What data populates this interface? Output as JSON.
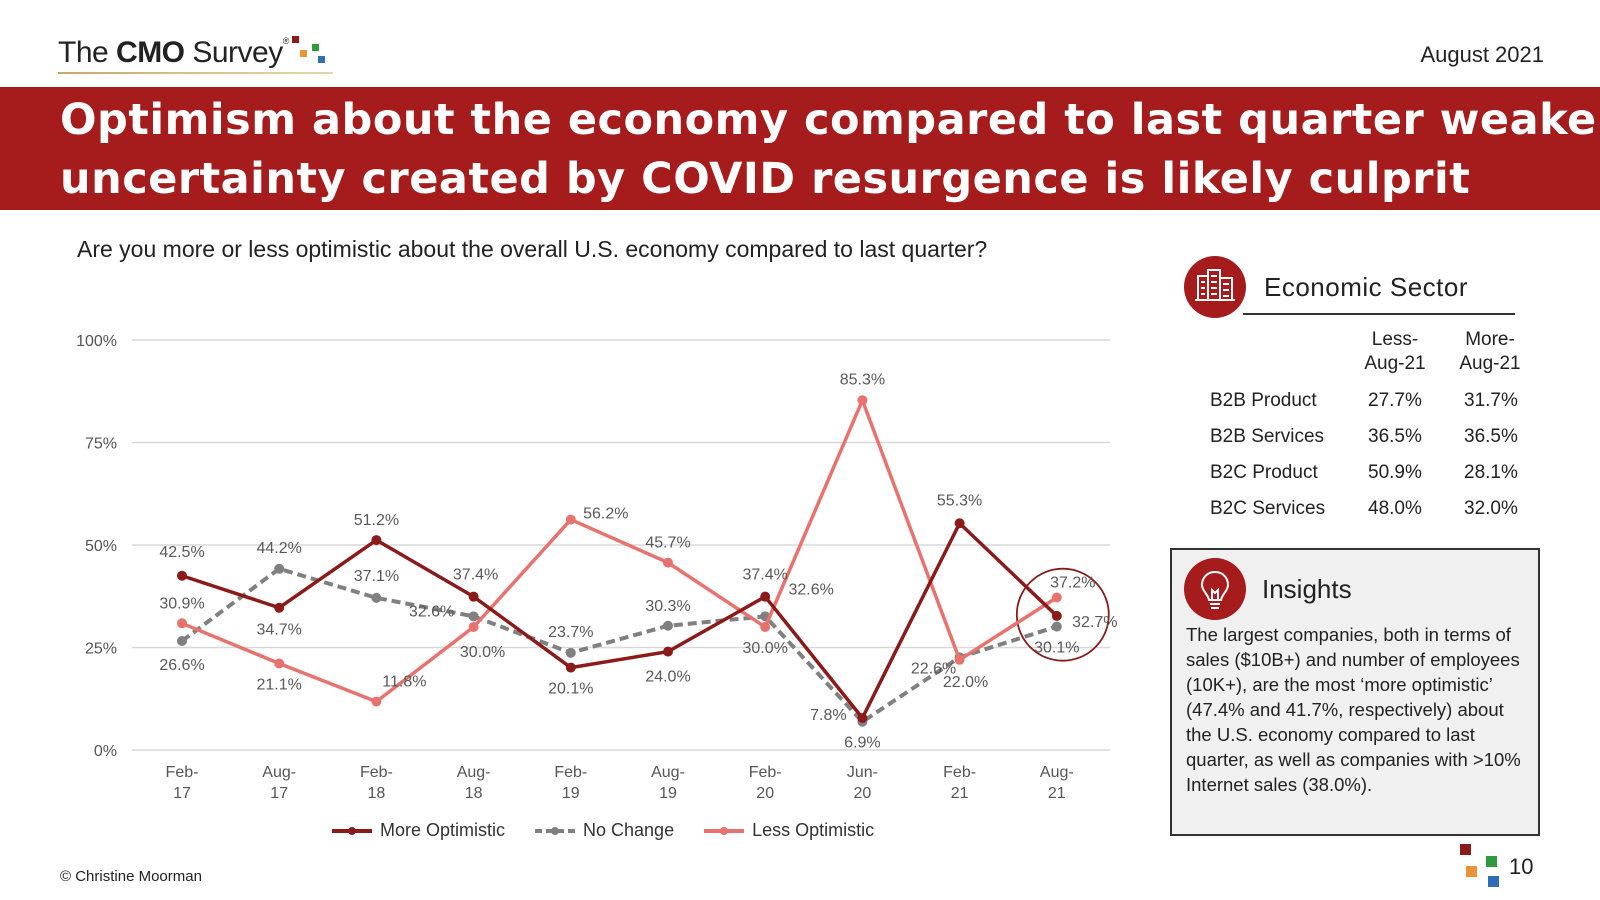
{
  "brand": {
    "logo_prefix": "The ",
    "logo_bold": "CMO",
    "logo_suffix": " Survey",
    "logo_reg": "®",
    "colors": {
      "red": "#a61c1c",
      "dark_red": "#8b1a1a",
      "gray": "#808080",
      "pink": "#e8736e",
      "green": "#2e9b3f",
      "orange": "#e8953a",
      "blue": "#2f6db5"
    }
  },
  "header": {
    "date": "August 2021",
    "title_line1": "Optimism about the economy compared to last quarter weakens,",
    "title_line2": "uncertainty created by COVID resurgence is likely culprit"
  },
  "question": "Are you more or less optimistic about the overall U.S. economy compared to last quarter?",
  "chart_data": {
    "type": "line",
    "title": "",
    "xlabel": "",
    "ylabel": "",
    "ylim": [
      0,
      100
    ],
    "y_ticks": [
      "0%",
      "25%",
      "50%",
      "75%",
      "100%"
    ],
    "y_tick_values": [
      0,
      25,
      50,
      75,
      100
    ],
    "categories": [
      "Feb-\n17",
      "Aug-\n17",
      "Feb-\n18",
      "Aug-\n18",
      "Feb-\n19",
      "Aug-\n19",
      "Feb-\n20",
      "Jun-\n20",
      "Feb-\n21",
      "Aug-\n21"
    ],
    "series": [
      {
        "name": "More Optimistic",
        "color": "#8b1a1a",
        "style": "solid",
        "values": [
          42.5,
          34.7,
          51.2,
          37.4,
          20.1,
          24.0,
          37.4,
          7.8,
          55.3,
          32.7
        ]
      },
      {
        "name": "No Change",
        "color": "#808080",
        "style": "dashed",
        "values": [
          26.6,
          44.2,
          37.1,
          32.6,
          23.7,
          30.3,
          32.6,
          6.9,
          22.6,
          30.1
        ]
      },
      {
        "name": "Less Optimistic",
        "color": "#e8736e",
        "style": "solid",
        "values": [
          30.9,
          21.1,
          11.8,
          30.0,
          56.2,
          45.7,
          30.0,
          85.3,
          22.0,
          37.2
        ]
      }
    ],
    "data_labels": [
      [
        "42.5%",
        "34.7%",
        "51.2%",
        "37.4%",
        "20.1%",
        "24.0%",
        "37.4%",
        "7.8%",
        "55.3%",
        "32.7%"
      ],
      [
        "26.6%",
        "44.2%",
        "37.1%",
        "32.6%",
        "23.7%",
        "30.3%",
        "32.6%",
        "6.9%",
        "22.6%",
        "30.1%"
      ],
      [
        "30.9%",
        "21.1%",
        "11.8%",
        "30.0%",
        "56.2%",
        "45.7%",
        "30.0%",
        "85.3%",
        "22.0%",
        "37.2%"
      ]
    ],
    "grid": true,
    "legend": "bottom",
    "highlight": "Aug-21 circled"
  },
  "legend": {
    "more": "More Optimistic",
    "nochange": "No Change",
    "less": "Less Optimistic"
  },
  "sector": {
    "icon": "city-buildings-icon",
    "title": "Economic Sector",
    "col1_line1": "Less-",
    "col1_line2": "Aug-21",
    "col2_line1": "More-",
    "col2_line2": "Aug-21",
    "rows": [
      {
        "label": "B2B Product",
        "less": "27.7%",
        "more": "31.7%"
      },
      {
        "label": "B2B Services",
        "less": "36.5%",
        "more": "36.5%"
      },
      {
        "label": "B2C Product",
        "less": "50.9%",
        "more": "28.1%"
      },
      {
        "label": "B2C Services",
        "less": "48.0%",
        "more": "32.0%"
      }
    ]
  },
  "insights": {
    "icon": "lightbulb-icon",
    "title": "Insights",
    "body": "The largest companies, both in terms of sales ($10B+) and number of employees (10K+), are the most ‘more optimistic’ (47.4% and 41.7%, respectively) about the U.S. economy compared to last quarter, as well as companies with >10% Internet sales (38.0%)."
  },
  "footer": {
    "copyright": "© Christine Moorman",
    "page": "10"
  }
}
